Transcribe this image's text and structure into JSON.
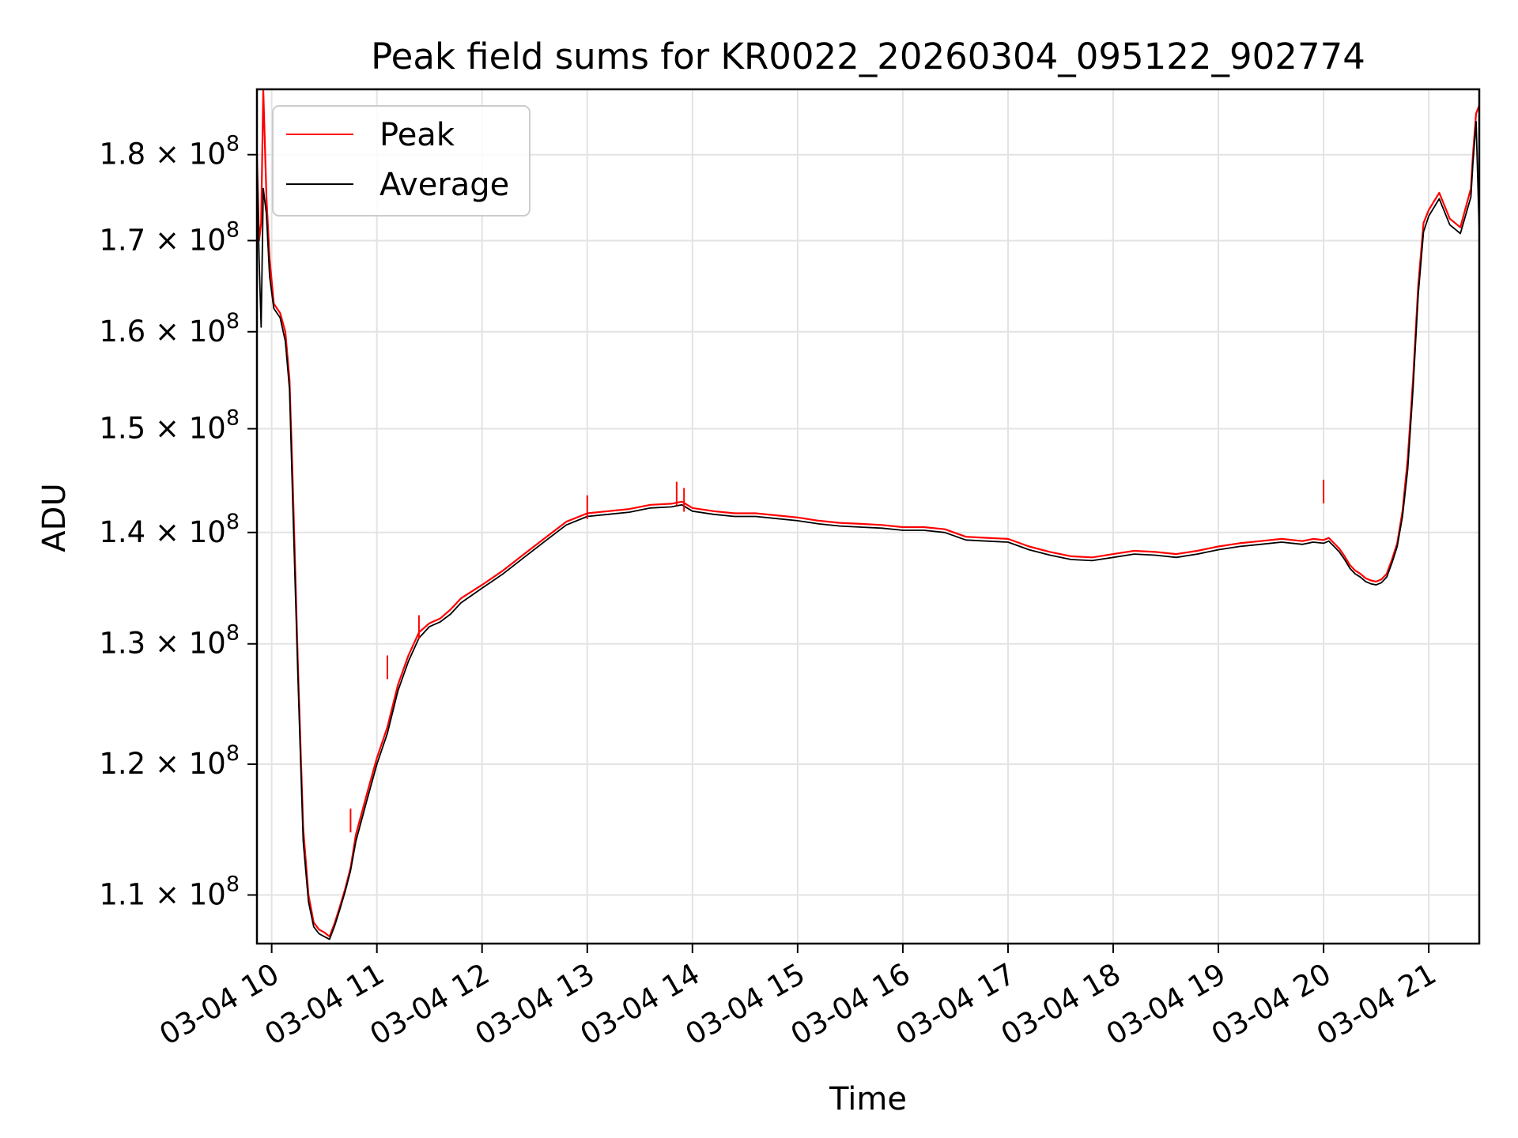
{
  "chart_data": {
    "type": "line",
    "title": "Peak field sums for KR0022_20260304_095122_902774",
    "xlabel": "Time",
    "ylabel": "ADU",
    "yscale": "log",
    "ylim": [
      106500000,
      188000000
    ],
    "xlim": [
      9.86,
      21.48
    ],
    "grid": true,
    "legend_position": "top-left",
    "x_ticks": [
      {
        "value": 10,
        "label": "03-04 10"
      },
      {
        "value": 11,
        "label": "03-04 11"
      },
      {
        "value": 12,
        "label": "03-04 12"
      },
      {
        "value": 13,
        "label": "03-04 13"
      },
      {
        "value": 14,
        "label": "03-04 14"
      },
      {
        "value": 15,
        "label": "03-04 15"
      },
      {
        "value": 16,
        "label": "03-04 16"
      },
      {
        "value": 17,
        "label": "03-04 17"
      },
      {
        "value": 18,
        "label": "03-04 18"
      },
      {
        "value": 19,
        "label": "03-04 19"
      },
      {
        "value": 20,
        "label": "03-04 20"
      },
      {
        "value": 21,
        "label": "03-04 21"
      }
    ],
    "y_ticks": [
      {
        "value": 110000000,
        "mantissa": "1.1 × 10",
        "exp": "8"
      },
      {
        "value": 120000000,
        "mantissa": "1.2 × 10",
        "exp": "8"
      },
      {
        "value": 130000000,
        "mantissa": "1.3 × 10",
        "exp": "8"
      },
      {
        "value": 140000000,
        "mantissa": "1.4 × 10",
        "exp": "8"
      },
      {
        "value": 150000000,
        "mantissa": "1.5 × 10",
        "exp": "8"
      },
      {
        "value": 160000000,
        "mantissa": "1.6 × 10",
        "exp": "8"
      },
      {
        "value": 170000000,
        "mantissa": "1.7 × 10",
        "exp": "8"
      },
      {
        "value": 180000000,
        "mantissa": "1.8 × 10",
        "exp": "8"
      }
    ],
    "x_time_hours": [
      9.86,
      9.88,
      9.9,
      9.92,
      9.95,
      9.98,
      10.02,
      10.08,
      10.13,
      10.17,
      10.2,
      10.25,
      10.3,
      10.35,
      10.4,
      10.45,
      10.5,
      10.55,
      10.6,
      10.65,
      10.7,
      10.75,
      10.8,
      10.9,
      11.0,
      11.1,
      11.2,
      11.3,
      11.4,
      11.5,
      11.6,
      11.7,
      11.8,
      12.0,
      12.2,
      12.4,
      12.6,
      12.8,
      13.0,
      13.2,
      13.4,
      13.6,
      13.8,
      13.9,
      14.0,
      14.2,
      14.4,
      14.6,
      14.8,
      15.0,
      15.2,
      15.4,
      15.6,
      15.8,
      16.0,
      16.2,
      16.4,
      16.6,
      16.8,
      17.0,
      17.2,
      17.4,
      17.6,
      17.8,
      18.0,
      18.2,
      18.4,
      18.6,
      18.8,
      19.0,
      19.2,
      19.4,
      19.6,
      19.8,
      19.9,
      20.0,
      20.05,
      20.1,
      20.15,
      20.2,
      20.25,
      20.3,
      20.35,
      20.4,
      20.45,
      20.5,
      20.55,
      20.6,
      20.65,
      20.7,
      20.75,
      20.8,
      20.85,
      20.9,
      20.95,
      21.0,
      21.1,
      21.2,
      21.3,
      21.4,
      21.42,
      21.45,
      21.48
    ],
    "series": [
      {
        "name": "Peak",
        "color": "#ff0000",
        "values": [
          180000000,
          170000000,
          172000000,
          188000000,
          175000000,
          168000000,
          163000000,
          162000000,
          160000000,
          155000000,
          145000000,
          128000000,
          115000000,
          110000000,
          108000000,
          107500000,
          107300000,
          107000000,
          108000000,
          109200000,
          110500000,
          112000000,
          114500000,
          117500000,
          120500000,
          123000000,
          126500000,
          129000000,
          131000000,
          131800000,
          132200000,
          133000000,
          134000000,
          135200000,
          136500000,
          138000000,
          139500000,
          141000000,
          141800000,
          142000000,
          142200000,
          142600000,
          142700000,
          142900000,
          142300000,
          142000000,
          141800000,
          141800000,
          141600000,
          141400000,
          141100000,
          140900000,
          140800000,
          140700000,
          140500000,
          140500000,
          140300000,
          139600000,
          139500000,
          139400000,
          138700000,
          138200000,
          137800000,
          137700000,
          138000000,
          138300000,
          138200000,
          138000000,
          138300000,
          138700000,
          139000000,
          139200000,
          139400000,
          139200000,
          139400000,
          139300000,
          139500000,
          139000000,
          138500000,
          137800000,
          137000000,
          136500000,
          136200000,
          135800000,
          135600000,
          135500000,
          135700000,
          136200000,
          137500000,
          139000000,
          142000000,
          147000000,
          155000000,
          165000000,
          172000000,
          173500000,
          175500000,
          172500000,
          171500000,
          176000000,
          180000000,
          185000000,
          186000000
        ]
      },
      {
        "name": "Average",
        "color": "#000000",
        "values": [
          180000000,
          168000000,
          160500000,
          176000000,
          173000000,
          166000000,
          162500000,
          161500000,
          159000000,
          154000000,
          143000000,
          127000000,
          114000000,
          109500000,
          107700000,
          107200000,
          107000000,
          106800000,
          107800000,
          109000000,
          110300000,
          111800000,
          114000000,
          117000000,
          120000000,
          122500000,
          126000000,
          128500000,
          130500000,
          131500000,
          131900000,
          132600000,
          133600000,
          134900000,
          136200000,
          137700000,
          139200000,
          140700000,
          141500000,
          141700000,
          141900000,
          142300000,
          142400000,
          142600000,
          142000000,
          141700000,
          141500000,
          141500000,
          141300000,
          141100000,
          140800000,
          140600000,
          140500000,
          140400000,
          140200000,
          140200000,
          140000000,
          139300000,
          139200000,
          139100000,
          138400000,
          137900000,
          137500000,
          137400000,
          137700000,
          138000000,
          137900000,
          137700000,
          138000000,
          138400000,
          138700000,
          138900000,
          139100000,
          138900000,
          139100000,
          139000000,
          139200000,
          138700000,
          138200000,
          137500000,
          136700000,
          136200000,
          135900000,
          135500000,
          135300000,
          135200000,
          135400000,
          135900000,
          137200000,
          138700000,
          141500000,
          146000000,
          154000000,
          164000000,
          171000000,
          172800000,
          174800000,
          171800000,
          170800000,
          175000000,
          179000000,
          184000000,
          171000000
        ]
      }
    ],
    "peak_spikes": [
      {
        "x": 9.92,
        "y": 188000000
      },
      {
        "x": 11.1,
        "y": 129000000
      },
      {
        "x": 10.75,
        "y": 116500000
      },
      {
        "x": 11.4,
        "y": 132500000
      },
      {
        "x": 13.0,
        "y": 143500000
      },
      {
        "x": 13.85,
        "y": 144800000
      },
      {
        "x": 13.92,
        "y": 144200000
      },
      {
        "x": 20.0,
        "y": 145000000
      }
    ]
  }
}
